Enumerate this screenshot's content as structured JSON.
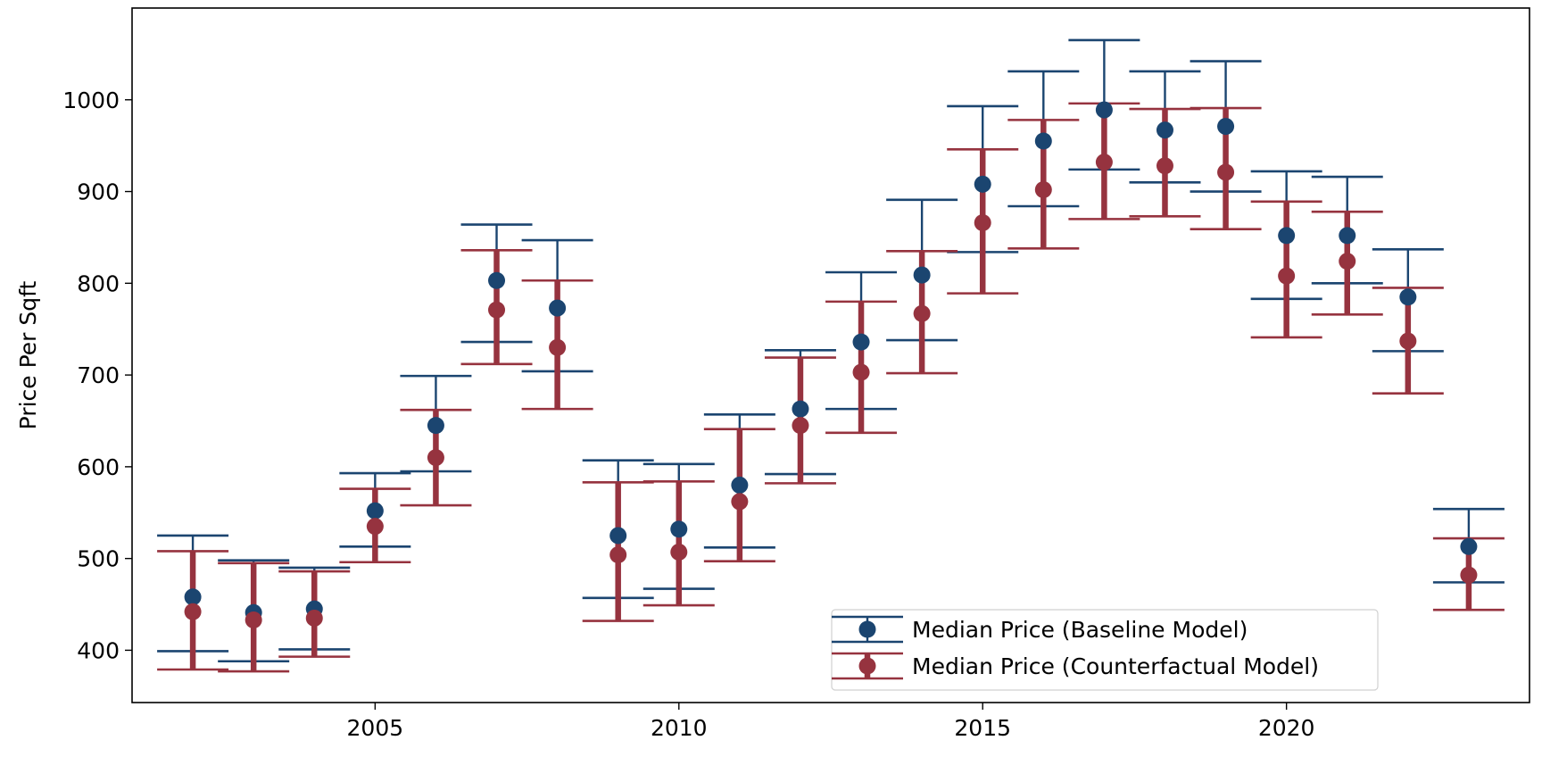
{
  "chart_data": {
    "type": "errorbar",
    "title": "",
    "xlabel": "",
    "ylabel": "Price Per Sqft",
    "xlim": [
      2001,
      2024
    ],
    "ylim": [
      343,
      1100
    ],
    "xticks": [
      2005,
      2010,
      2015,
      2020
    ],
    "yticks": [
      400,
      500,
      600,
      700,
      800,
      900,
      1000
    ],
    "grid": false,
    "legend_position": "lower-right",
    "x": [
      2002,
      2003,
      2004,
      2005,
      2006,
      2007,
      2008,
      2009,
      2010,
      2011,
      2012,
      2013,
      2014,
      2015,
      2016,
      2017,
      2018,
      2019,
      2020,
      2021,
      2022,
      2023
    ],
    "series": [
      {
        "name": "Median Price (Baseline Model)",
        "color": "#1b4570",
        "values": [
          458,
          441,
          445,
          552,
          645,
          803,
          773,
          525,
          532,
          580,
          663,
          736,
          809,
          908,
          955,
          989,
          967,
          971,
          852,
          852,
          785,
          513
        ],
        "lower": [
          399,
          388,
          401,
          513,
          595,
          736,
          704,
          457,
          467,
          512,
          592,
          663,
          738,
          834,
          884,
          924,
          910,
          900,
          783,
          800,
          726,
          474
        ],
        "upper": [
          525,
          498,
          490,
          593,
          699,
          864,
          847,
          607,
          603,
          657,
          727,
          812,
          891,
          993,
          1031,
          1065,
          1031,
          1042,
          922,
          916,
          837,
          554
        ]
      },
      {
        "name": "Median Price (Counterfactual Model)",
        "color": "#96333f",
        "values": [
          442,
          433,
          435,
          535,
          610,
          771,
          730,
          504,
          507,
          562,
          645,
          703,
          767,
          866,
          902,
          932,
          928,
          921,
          808,
          824,
          737,
          482
        ],
        "lower": [
          379,
          377,
          393,
          496,
          558,
          712,
          663,
          432,
          449,
          497,
          582,
          637,
          702,
          789,
          838,
          870,
          873,
          859,
          741,
          766,
          680,
          444
        ],
        "upper": [
          508,
          495,
          486,
          576,
          662,
          836,
          803,
          583,
          584,
          641,
          719,
          780,
          835,
          946,
          978,
          996,
          990,
          991,
          889,
          878,
          795,
          522
        ]
      }
    ]
  }
}
